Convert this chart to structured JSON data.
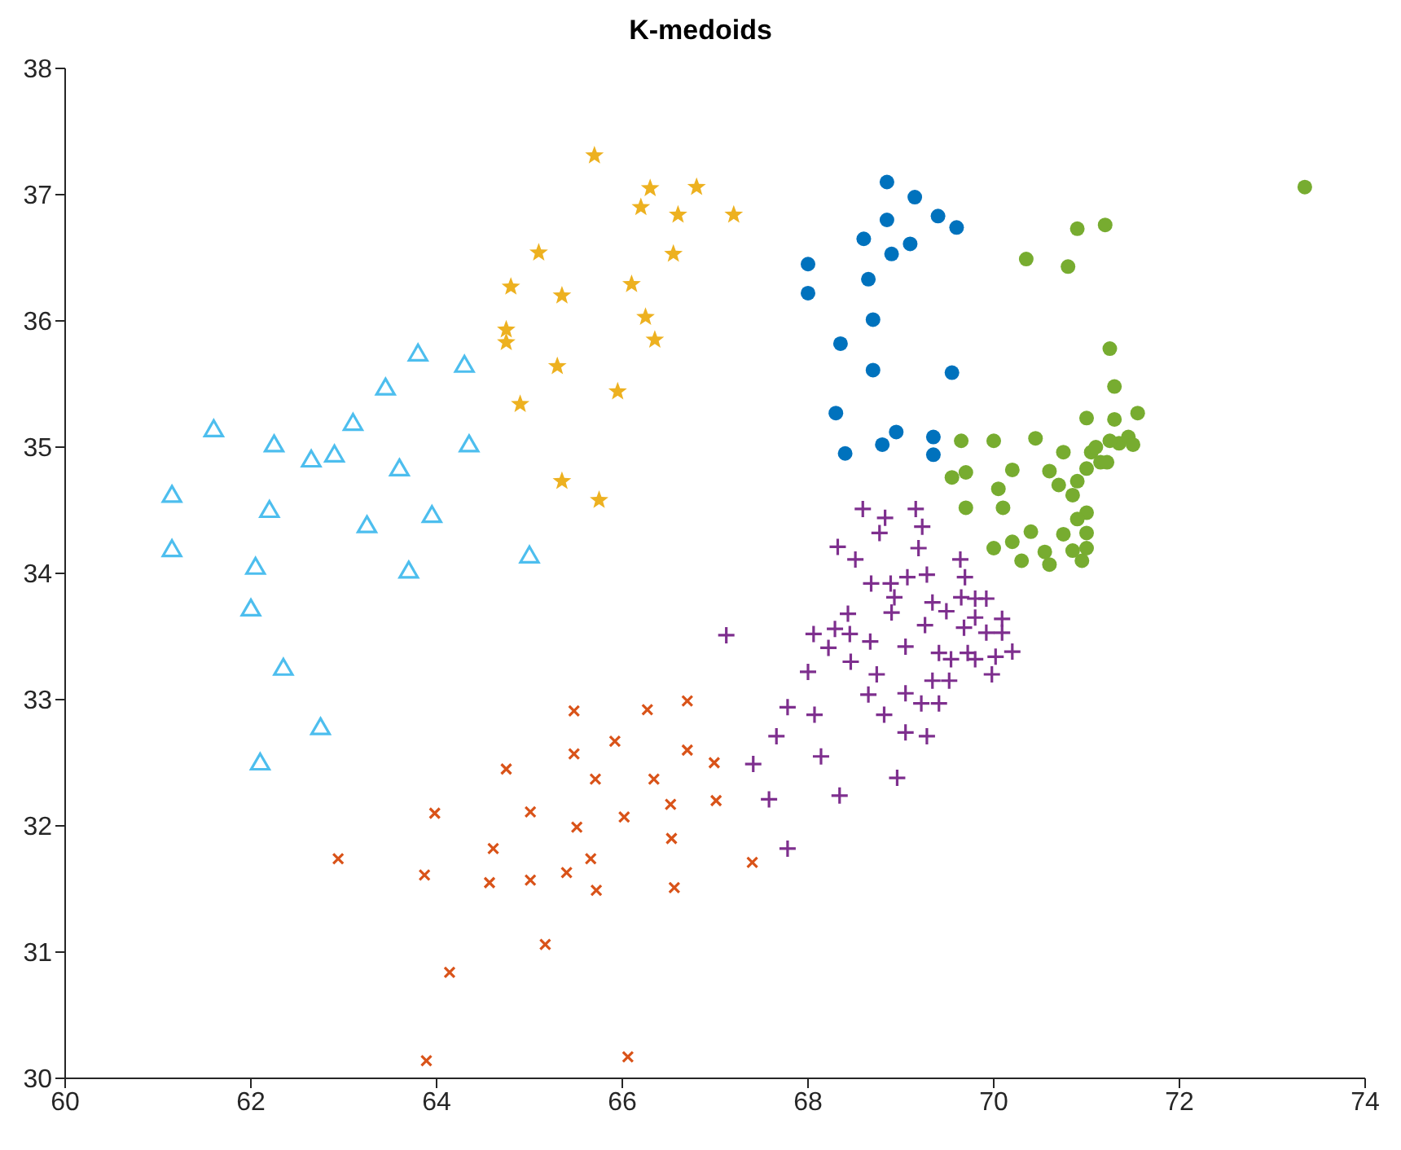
{
  "chart_data": {
    "type": "scatter",
    "title": "K-medoids",
    "xlim": [
      60,
      74
    ],
    "xticks": [
      60,
      62,
      64,
      66,
      68,
      70,
      72,
      74
    ],
    "ylim": [
      30,
      38
    ],
    "yticks": [
      30,
      31,
      32,
      33,
      34,
      35,
      36,
      37,
      38
    ],
    "grid": false,
    "legend": false,
    "series": [
      {
        "color": "#d95319",
        "marker": "cross",
        "x": [
          65.48,
          66.27,
          66.7,
          65.92,
          65.48,
          66.7,
          64.75,
          65.71,
          66.34,
          66.99,
          63.98,
          65.01,
          65.51,
          66.02,
          66.52,
          67.01,
          64.61,
          66.53,
          62.94,
          63.87,
          64.57,
          65.01,
          65.4,
          65.66,
          65.72,
          66.56,
          67.4,
          65.17,
          64.14,
          63.89,
          66.06
        ],
        "values": [
          32.91,
          32.92,
          32.99,
          32.67,
          32.57,
          32.6,
          32.45,
          32.37,
          32.37,
          32.5,
          32.1,
          32.11,
          31.99,
          32.07,
          32.17,
          32.2,
          31.82,
          31.9,
          31.74,
          31.61,
          31.55,
          31.57,
          31.63,
          31.74,
          31.49,
          31.51,
          31.71,
          31.06,
          30.84,
          30.14,
          30.17
        ]
      },
      {
        "color": "#7e2f8e",
        "marker": "plus",
        "x": [
          68.59,
          69.16,
          68.83,
          69.23,
          68.77,
          68.32,
          69.19,
          68.51,
          69.64,
          68.68,
          68.89,
          69.07,
          69.28,
          69.69,
          68.93,
          69.34,
          69.49,
          69.65,
          69.8,
          69.92,
          68.43,
          68.9,
          69.26,
          69.68,
          69.8,
          70.09,
          68.06,
          68.29,
          68.45,
          69.92,
          70.09,
          67.12,
          68.67,
          69.05,
          68.22,
          69.41,
          69.54,
          69.72,
          69.8,
          70.02,
          70.2,
          68.46,
          68.0,
          68.74,
          69.34,
          69.52,
          69.98,
          68.65,
          69.05,
          69.22,
          69.41,
          67.78,
          68.07,
          68.82,
          69.05,
          69.28,
          67.66,
          67.41,
          68.14,
          68.96,
          67.58,
          68.34,
          67.78
        ],
        "values": [
          34.51,
          34.51,
          34.44,
          34.37,
          34.32,
          34.21,
          34.2,
          34.11,
          34.11,
          33.92,
          33.92,
          33.97,
          33.99,
          33.97,
          33.81,
          33.77,
          33.7,
          33.81,
          33.8,
          33.8,
          33.68,
          33.69,
          33.59,
          33.57,
          33.65,
          33.64,
          33.52,
          33.56,
          33.52,
          33.53,
          33.53,
          33.51,
          33.46,
          33.42,
          33.41,
          33.37,
          33.32,
          33.37,
          33.32,
          33.34,
          33.38,
          33.3,
          33.22,
          33.2,
          33.15,
          33.15,
          33.2,
          33.04,
          33.05,
          32.97,
          32.97,
          32.94,
          32.88,
          32.88,
          32.74,
          32.71,
          32.71,
          32.49,
          32.55,
          32.38,
          32.21,
          32.24,
          31.82
        ]
      },
      {
        "color": "#4dbeee",
        "marker": "triangle",
        "x": [
          61.15,
          61.15,
          61.6,
          62.0,
          62.05,
          62.1,
          62.2,
          62.25,
          62.35,
          62.65,
          62.75,
          62.9,
          63.1,
          63.25,
          63.45,
          63.6,
          63.7,
          63.8,
          63.95,
          64.3,
          64.35,
          65.0
        ],
        "values": [
          34.62,
          34.19,
          35.14,
          33.72,
          34.05,
          32.5,
          34.5,
          35.02,
          33.25,
          34.9,
          32.78,
          34.94,
          35.19,
          34.38,
          35.47,
          34.83,
          34.02,
          35.74,
          34.46,
          35.65,
          35.02,
          34.14
        ]
      },
      {
        "color": "#edb120",
        "marker": "star",
        "x": [
          65.7,
          66.3,
          66.8,
          66.2,
          66.6,
          67.2,
          65.1,
          66.55,
          64.8,
          66.1,
          65.35,
          64.75,
          64.75,
          66.25,
          66.35,
          65.3,
          64.9,
          65.95,
          65.35,
          65.75
        ],
        "values": [
          37.31,
          37.05,
          37.06,
          36.9,
          36.84,
          36.84,
          36.54,
          36.53,
          36.27,
          36.29,
          36.2,
          35.93,
          35.83,
          36.03,
          35.85,
          35.64,
          35.34,
          35.44,
          34.73,
          34.58
        ]
      },
      {
        "color": "#0072bd",
        "marker": "circle",
        "x": [
          68.85,
          69.15,
          69.4,
          68.85,
          69.6,
          68.6,
          69.1,
          68.9,
          68.0,
          68.65,
          68.0,
          68.7,
          68.35,
          68.7,
          69.55,
          68.3,
          68.95,
          68.8,
          68.4,
          69.35,
          69.35
        ],
        "values": [
          37.1,
          36.98,
          36.83,
          36.8,
          36.74,
          36.65,
          36.61,
          36.53,
          36.45,
          36.33,
          36.22,
          36.01,
          35.82,
          35.61,
          35.59,
          35.27,
          35.12,
          35.02,
          34.95,
          35.08,
          34.94
        ]
      },
      {
        "color": "#77ac30",
        "marker": "circle",
        "x": [
          73.35,
          71.2,
          70.9,
          70.35,
          70.8,
          71.25,
          71.3,
          71.55,
          71.0,
          71.3,
          69.65,
          70.0,
          70.45,
          70.75,
          71.05,
          71.35,
          71.25,
          71.45,
          71.1,
          71.5,
          69.55,
          69.7,
          70.2,
          70.6,
          70.05,
          70.7,
          70.85,
          70.9,
          71.0,
          71.15,
          71.22,
          69.7,
          70.1,
          71.0,
          70.9,
          70.4,
          70.2,
          70.0,
          70.75,
          71.0,
          71.0,
          70.3,
          70.6,
          70.55,
          70.85,
          70.95
        ],
        "values": [
          37.06,
          36.76,
          36.73,
          36.49,
          36.43,
          35.78,
          35.48,
          35.27,
          35.23,
          35.22,
          35.05,
          35.05,
          35.07,
          34.96,
          34.96,
          35.03,
          35.05,
          35.08,
          35.0,
          35.02,
          34.76,
          34.8,
          34.82,
          34.81,
          34.67,
          34.7,
          34.62,
          34.73,
          34.83,
          34.88,
          34.88,
          34.52,
          34.52,
          34.48,
          34.43,
          34.33,
          34.25,
          34.2,
          34.31,
          34.32,
          34.2,
          34.1,
          34.07,
          34.17,
          34.18,
          34.1
        ]
      }
    ]
  }
}
